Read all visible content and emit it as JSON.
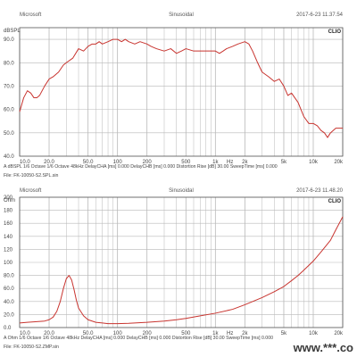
{
  "watermark": "www.***.co",
  "colors": {
    "curve": "#c8342f",
    "grid": "#b8b8b8",
    "frame": "#555555",
    "text": "#444444"
  },
  "chart_data": [
    {
      "type": "line",
      "header": {
        "left": "Microsoft",
        "center": "Sinusoidal",
        "right": "2017-6-23 11.37.54"
      },
      "logo": "CLIO",
      "ylabel": "dBSPL",
      "xscale": "log",
      "xlim": [
        10,
        20000
      ],
      "ylim": [
        40,
        95
      ],
      "x_ticks": [
        {
          "v": 10,
          "t": "10.0"
        },
        {
          "v": 20,
          "t": "20.0"
        },
        {
          "v": 50,
          "t": "50.0"
        },
        {
          "v": 100,
          "t": "100"
        },
        {
          "v": 200,
          "t": "200"
        },
        {
          "v": 500,
          "t": "500"
        },
        {
          "v": 1000,
          "t": "1k"
        },
        {
          "v": 1410,
          "t": "Hz"
        },
        {
          "v": 2000,
          "t": "2k"
        },
        {
          "v": 5000,
          "t": "5k"
        },
        {
          "v": 10000,
          "t": "10k"
        },
        {
          "v": 20000,
          "t": "20k"
        }
      ],
      "y_ticks": [
        {
          "v": 90,
          "t": "90.0"
        },
        {
          "v": 80,
          "t": "80.0"
        },
        {
          "v": 70,
          "t": "70.0"
        },
        {
          "v": 60,
          "t": "60.0"
        },
        {
          "v": 50,
          "t": "50.0"
        },
        {
          "v": 40,
          "t": "40.0"
        }
      ],
      "series": [
        {
          "x": [
            10,
            11,
            12,
            13,
            14,
            15,
            16,
            18,
            20,
            22,
            25,
            28,
            30,
            35,
            40,
            45,
            50,
            55,
            60,
            65,
            70,
            80,
            90,
            100,
            110,
            120,
            130,
            150,
            170,
            200,
            220,
            250,
            300,
            350,
            400,
            450,
            500,
            600,
            700,
            800,
            900,
            1000,
            1100,
            1200,
            1300,
            1500,
            1700,
            2000,
            2200,
            2400,
            2700,
            3000,
            3500,
            4000,
            4500,
            5000,
            5500,
            6000,
            7000,
            8000,
            9000,
            10000,
            11000,
            12000,
            13000,
            14000,
            15000,
            17000,
            20000
          ],
          "y": [
            59,
            65,
            68,
            67,
            65,
            65,
            66,
            70,
            73,
            74,
            76,
            79,
            80,
            82,
            86,
            85,
            87,
            88,
            88,
            89,
            88,
            89,
            90,
            90,
            89,
            90,
            89,
            88,
            89,
            88,
            87,
            86,
            85,
            86,
            84,
            85,
            86,
            85,
            85,
            85,
            85,
            85,
            84,
            85,
            86,
            87,
            88,
            89,
            88,
            85,
            80,
            76,
            74,
            72,
            73,
            70,
            66,
            67,
            63,
            57,
            54,
            54,
            53,
            51,
            50,
            48,
            50,
            52,
            52
          ]
        }
      ],
      "info_lines": [
        "A   dBSPL   1/6 Octave   1/6 Octave   48kHz   DelayCHA [ms] 0.000   DelayCHB [ms] 0.000   Distortion Rise [dB] 30.00   SweepTime [ms] 0.000",
        "File: FK-10050-S2.SPL.sin"
      ]
    },
    {
      "type": "line",
      "header": {
        "left": "Microsoft",
        "center": "Sinusoidal",
        "right": "2017-6-23 11.48.20"
      },
      "logo": "CLIO",
      "ylabel": "Ohm",
      "xscale": "log",
      "xlim": [
        10,
        20000
      ],
      "ylim": [
        0,
        200
      ],
      "x_ticks": [
        {
          "v": 10,
          "t": "10.0"
        },
        {
          "v": 20,
          "t": "20.0"
        },
        {
          "v": 50,
          "t": "50.0"
        },
        {
          "v": 100,
          "t": "100"
        },
        {
          "v": 200,
          "t": "200"
        },
        {
          "v": 500,
          "t": "500"
        },
        {
          "v": 1000,
          "t": "1k"
        },
        {
          "v": 1410,
          "t": "Hz"
        },
        {
          "v": 2000,
          "t": "2k"
        },
        {
          "v": 5000,
          "t": "5k"
        },
        {
          "v": 10000,
          "t": "10k"
        },
        {
          "v": 20000,
          "t": "20k"
        }
      ],
      "y_ticks": [
        {
          "v": 200,
          "t": "200"
        },
        {
          "v": 180,
          "t": "180"
        },
        {
          "v": 160,
          "t": "160"
        },
        {
          "v": 140,
          "t": "140"
        },
        {
          "v": 120,
          "t": "120"
        },
        {
          "v": 100,
          "t": "100"
        },
        {
          "v": 80,
          "t": "80.0"
        },
        {
          "v": 60,
          "t": "60.0"
        },
        {
          "v": 40,
          "t": "40.0"
        },
        {
          "v": 20,
          "t": "20.0"
        },
        {
          "v": 0,
          "t": "0.0"
        }
      ],
      "series": [
        {
          "x": [
            10,
            12,
            15,
            18,
            20,
            22,
            24,
            26,
            28,
            30,
            32,
            34,
            36,
            38,
            40,
            45,
            50,
            60,
            70,
            80,
            100,
            130,
            150,
            200,
            300,
            400,
            500,
            700,
            1000,
            1500,
            2000,
            3000,
            4000,
            5000,
            6000,
            7000,
            8000,
            10000,
            12000,
            15000,
            17000,
            20000
          ],
          "y": [
            7,
            8,
            9,
            10,
            12,
            16,
            25,
            40,
            60,
            75,
            80,
            73,
            58,
            42,
            30,
            18,
            12,
            8,
            7,
            6,
            6,
            6.5,
            7,
            8,
            10,
            12,
            14,
            18,
            22,
            28,
            35,
            46,
            55,
            63,
            72,
            80,
            88,
            102,
            116,
            134,
            150,
            170
          ]
        }
      ],
      "info_lines": [
        "A   Ohm   1/6 Octave   1/6 Octave   48kHz   DelayCHA [ms] 0.000   DelayCHB [ms] 0.000   Distortion Rise [dB] 30.00   SweepTime [ms] 0.000",
        "File: FK-10050-S2.ZMP.sin"
      ]
    }
  ]
}
